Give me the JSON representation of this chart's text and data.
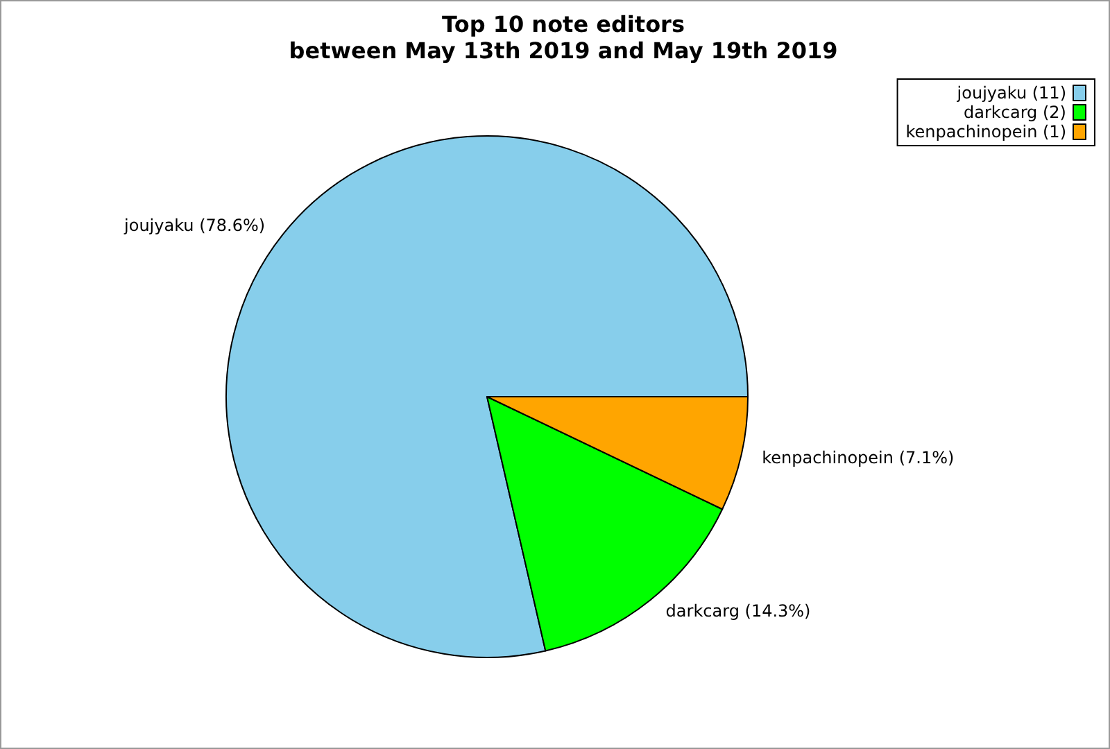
{
  "chart_data": {
    "type": "pie",
    "title": "Top 10 note editors\nbetween May 13th 2019 and May 19th 2019",
    "categories": [
      "joujyaku (11)",
      "darkcarg (2)",
      "kenpachinopein (1)"
    ],
    "values": [
      78.6,
      14.3,
      7.1
    ],
    "value_labels": [
      "joujyaku (78.6%)",
      "darkcarg (14.3%)",
      "kenpachinopein (7.1%)"
    ],
    "colors": [
      "#87ceeb",
      "#00ff00",
      "#ffa500"
    ],
    "legend": "top right"
  }
}
